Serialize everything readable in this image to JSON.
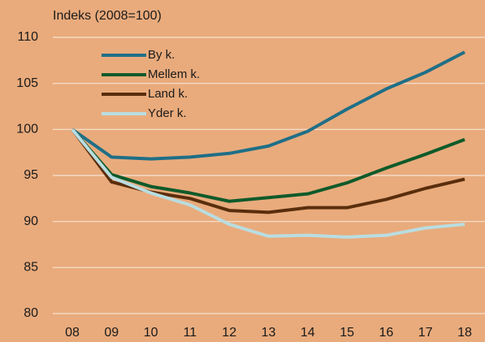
{
  "chart_data": {
    "type": "line",
    "y_axis_label": "Indeks (2008=100)",
    "categories": [
      "08",
      "09",
      "10",
      "11",
      "12",
      "13",
      "14",
      "15",
      "16",
      "17",
      "18"
    ],
    "series": [
      {
        "name": "By k.",
        "color": "#1f6f87",
        "values": [
          100,
          97.0,
          96.8,
          97.0,
          97.4,
          98.2,
          99.8,
          102.2,
          104.4,
          106.2,
          108.4
        ]
      },
      {
        "name": "Mellem k.",
        "color": "#0f5a2a",
        "values": [
          100,
          95.1,
          93.8,
          93.1,
          92.2,
          92.6,
          93.0,
          94.2,
          95.8,
          97.3,
          98.9
        ]
      },
      {
        "name": "Land k.",
        "color": "#5a2e0c",
        "values": [
          100,
          94.3,
          93.2,
          92.5,
          91.2,
          91.0,
          91.5,
          91.5,
          92.4,
          93.6,
          94.6
        ]
      },
      {
        "name": "Yder k.",
        "color": "#b9dde1",
        "values": [
          100,
          94.8,
          93.1,
          91.8,
          89.7,
          88.4,
          88.5,
          88.3,
          88.5,
          89.3,
          89.7
        ]
      }
    ],
    "ylim": [
      80,
      110
    ],
    "yticks": [
      80,
      85,
      90,
      95,
      100,
      105,
      110
    ],
    "grid": true,
    "legend": "upper-left"
  }
}
